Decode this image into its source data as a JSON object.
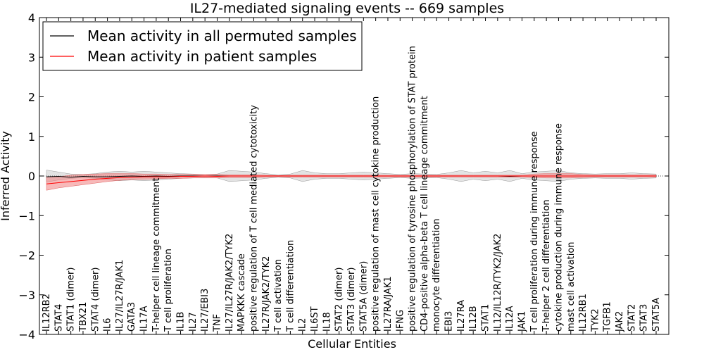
{
  "chart_data": {
    "type": "line",
    "title": "IL27-mediated signaling events -- 669 samples",
    "xlabel": "Cellular Entities",
    "ylabel": "Inferred Activity",
    "ylim": [
      -4,
      4
    ],
    "yticks": [
      -4,
      -3,
      -2,
      -1,
      0,
      1,
      2,
      3,
      4
    ],
    "ytick_labels": [
      "−4",
      "−3",
      "−2",
      "−1",
      "0",
      "1",
      "2",
      "3",
      "4"
    ],
    "grid": false,
    "legend_position": "top-left",
    "categories": [
      "IL12RB2",
      "STAT4",
      "STAT1 (dimer)",
      "TBX21",
      "STAT4 (dimer)",
      "IL6",
      "IL27/IL27R/JAK1",
      "GATA3",
      "IL17A",
      "T-helper cell lineage commitment",
      "T cell proliferation",
      "IL1B",
      "IL27",
      "IL27/EBI3",
      "TNF",
      "IL27/IL27R/JAK2/TYK2",
      "MAPKKK cascade",
      "positive regulation of T cell mediated cytotoxicity",
      "IL27R/JAK2/TYK2",
      "T cell activation",
      "T cell differentiation",
      "IL2",
      "IL6ST",
      "IL18",
      "STAT2 (dimer)",
      "STAT3 (dimer)",
      "STAT5A (dimer)",
      "positive regulation of mast cell cytokine production",
      "IL27RA/JAK1",
      "IFNG",
      "positive regulation of tyrosine phosphorylation of STAT protein",
      "CD4-positive alpha-beta T cell lineage commitment",
      "monocyte differentiation",
      "EBI3",
      "IL27RA",
      "IL12B",
      "STAT1",
      "IL12/IL12R/TYK2/JAK2",
      "IL12A",
      "JAK1",
      "T cell proliferation during immune response",
      "T-helper 2 cell differentiation",
      "cytokine production during immune response",
      "mast cell activation",
      "IL12RB1",
      "TYK2",
      "TGFB1",
      "JAK2",
      "STAT2",
      "STAT3",
      "STAT5A"
    ],
    "series": [
      {
        "name": "Mean activity in all permuted samples",
        "color": "#000000",
        "values": [
          -0.02,
          -0.01,
          -0.03,
          -0.01,
          -0.02,
          -0.02,
          -0.01,
          0.0,
          -0.01,
          0.0,
          -0.01,
          0.0,
          0.0,
          0.0,
          0.0,
          0.0,
          0.0,
          0.0,
          0.0,
          0.0,
          0.0,
          0.0,
          0.0,
          0.0,
          0.0,
          0.0,
          0.0,
          0.0,
          0.0,
          0.0,
          0.0,
          0.0,
          0.0,
          0.0,
          0.0,
          0.0,
          0.0,
          0.0,
          -0.01,
          0.0,
          0.0,
          0.0,
          0.0,
          0.0,
          0.0,
          0.0,
          0.0,
          0.0,
          0.0,
          0.0,
          0.0
        ],
        "band_upper": [
          0.15,
          0.1,
          0.05,
          0.04,
          0.06,
          0.1,
          0.12,
          0.1,
          0.12,
          0.1,
          0.08,
          0.06,
          0.05,
          0.04,
          0.05,
          0.14,
          0.12,
          0.1,
          0.06,
          0.03,
          0.05,
          0.14,
          0.08,
          0.06,
          0.06,
          0.08,
          0.1,
          0.08,
          0.06,
          0.04,
          0.06,
          0.05,
          0.04,
          0.08,
          0.14,
          0.08,
          0.12,
          0.08,
          0.14,
          0.06,
          0.1,
          0.12,
          0.14,
          0.08,
          0.06,
          0.05,
          0.06,
          0.06,
          0.08,
          0.06,
          0.05
        ],
        "band_lower": [
          -0.15,
          -0.1,
          -0.06,
          -0.04,
          -0.06,
          -0.1,
          -0.12,
          -0.1,
          -0.12,
          -0.1,
          -0.08,
          -0.06,
          -0.05,
          -0.04,
          -0.05,
          -0.14,
          -0.12,
          -0.1,
          -0.06,
          -0.03,
          -0.05,
          -0.14,
          -0.08,
          -0.06,
          -0.06,
          -0.08,
          -0.1,
          -0.08,
          -0.06,
          -0.04,
          -0.06,
          -0.05,
          -0.04,
          -0.08,
          -0.14,
          -0.08,
          -0.12,
          -0.08,
          -0.14,
          -0.06,
          -0.1,
          -0.12,
          -0.14,
          -0.08,
          -0.06,
          -0.05,
          -0.06,
          -0.06,
          -0.08,
          -0.06,
          -0.05
        ]
      },
      {
        "name": "Mean activity in patient samples",
        "color": "#ff0000",
        "band_color": "#f08080",
        "values": [
          -0.2,
          -0.17,
          -0.14,
          -0.11,
          -0.08,
          -0.06,
          -0.04,
          -0.03,
          -0.02,
          -0.02,
          -0.02,
          -0.01,
          -0.01,
          0.0,
          -0.01,
          0.0,
          0.0,
          0.0,
          0.0,
          0.0,
          0.0,
          0.0,
          0.0,
          0.0,
          0.0,
          0.0,
          0.0,
          0.0,
          0.0,
          0.0,
          0.0,
          0.0,
          0.0,
          0.0,
          0.0,
          0.0,
          0.0,
          0.0,
          0.0,
          0.0,
          0.0,
          0.0,
          0.0,
          0.0,
          0.0,
          0.0,
          0.0,
          0.0,
          0.0,
          0.0,
          0.0
        ],
        "band_upper": [
          -0.02,
          -0.02,
          0.02,
          0.04,
          0.05,
          0.06,
          0.06,
          0.06,
          0.05,
          0.05,
          0.04,
          0.04,
          0.04,
          0.04,
          0.04,
          0.03,
          0.03,
          0.03,
          0.02,
          0.01,
          0.02,
          0.02,
          0.02,
          0.02,
          0.02,
          0.02,
          0.02,
          0.02,
          0.02,
          0.02,
          0.02,
          0.02,
          0.02,
          0.02,
          0.02,
          0.02,
          0.02,
          0.02,
          0.02,
          0.02,
          0.05,
          0.06,
          0.06,
          0.06,
          0.04,
          0.03,
          0.03,
          0.03,
          0.03,
          0.03,
          0.03
        ],
        "band_lower": [
          -0.36,
          -0.3,
          -0.26,
          -0.22,
          -0.18,
          -0.14,
          -0.11,
          -0.09,
          -0.08,
          -0.07,
          -0.06,
          -0.06,
          -0.05,
          -0.05,
          -0.05,
          -0.04,
          -0.04,
          -0.04,
          -0.03,
          -0.02,
          -0.03,
          -0.03,
          -0.03,
          -0.03,
          -0.03,
          -0.03,
          -0.03,
          -0.03,
          -0.03,
          -0.03,
          -0.03,
          -0.03,
          -0.03,
          -0.03,
          -0.03,
          -0.03,
          -0.03,
          -0.03,
          -0.03,
          -0.03,
          -0.04,
          -0.05,
          -0.05,
          -0.05,
          -0.04,
          -0.03,
          -0.03,
          -0.03,
          -0.03,
          -0.03,
          -0.03
        ]
      }
    ]
  }
}
